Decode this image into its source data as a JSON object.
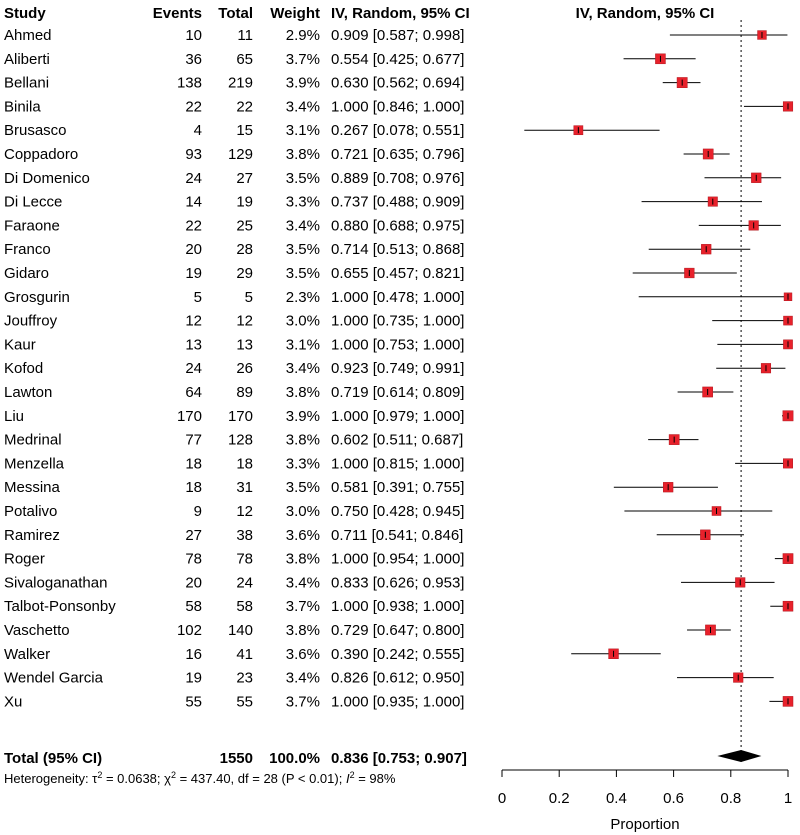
{
  "chart_data": {
    "type": "forest",
    "columns": [
      "Study",
      "Events",
      "Total",
      "Weight",
      "IV, Random, 95% CI"
    ],
    "plot_title": "IV, Random, 95% CI",
    "xlabel": "Proportion",
    "xlim": [
      0,
      1
    ],
    "xticks": [
      0,
      0.2,
      0.4,
      0.6,
      0.8,
      1
    ],
    "xtick_labels": [
      "0",
      "0.2",
      "0.4",
      "0.6",
      "0.8",
      "1"
    ],
    "reference_line": 0.836,
    "marker_color": "#e8212b",
    "studies": [
      {
        "name": "Ahmed",
        "events": "10",
        "total": "11",
        "weight": "2.9%",
        "ci_text": "0.909 [0.587; 0.998]",
        "est": 0.909,
        "lo": 0.587,
        "hi": 0.998,
        "w": 2.9
      },
      {
        "name": "Aliberti",
        "events": "36",
        "total": "65",
        "weight": "3.7%",
        "ci_text": "0.554 [0.425; 0.677]",
        "est": 0.554,
        "lo": 0.425,
        "hi": 0.677,
        "w": 3.7
      },
      {
        "name": "Bellani",
        "events": "138",
        "total": "219",
        "weight": "3.9%",
        "ci_text": "0.630 [0.562; 0.694]",
        "est": 0.63,
        "lo": 0.562,
        "hi": 0.694,
        "w": 3.9
      },
      {
        "name": "Binila",
        "events": "22",
        "total": "22",
        "weight": "3.4%",
        "ci_text": "1.000 [0.846; 1.000]",
        "est": 1.0,
        "lo": 0.846,
        "hi": 1.0,
        "w": 3.4
      },
      {
        "name": "Brusasco",
        "events": "4",
        "total": "15",
        "weight": "3.1%",
        "ci_text": "0.267 [0.078; 0.551]",
        "est": 0.267,
        "lo": 0.078,
        "hi": 0.551,
        "w": 3.1
      },
      {
        "name": "Coppadoro",
        "events": "93",
        "total": "129",
        "weight": "3.8%",
        "ci_text": "0.721 [0.635; 0.796]",
        "est": 0.721,
        "lo": 0.635,
        "hi": 0.796,
        "w": 3.8
      },
      {
        "name": "Di Domenico",
        "events": "24",
        "total": "27",
        "weight": "3.5%",
        "ci_text": "0.889 [0.708; 0.976]",
        "est": 0.889,
        "lo": 0.708,
        "hi": 0.976,
        "w": 3.5
      },
      {
        "name": "Di Lecce",
        "events": "14",
        "total": "19",
        "weight": "3.3%",
        "ci_text": "0.737 [0.488; 0.909]",
        "est": 0.737,
        "lo": 0.488,
        "hi": 0.909,
        "w": 3.3
      },
      {
        "name": "Faraone",
        "events": "22",
        "total": "25",
        "weight": "3.4%",
        "ci_text": "0.880 [0.688; 0.975]",
        "est": 0.88,
        "lo": 0.688,
        "hi": 0.975,
        "w": 3.4
      },
      {
        "name": "Franco",
        "events": "20",
        "total": "28",
        "weight": "3.5%",
        "ci_text": "0.714 [0.513; 0.868]",
        "est": 0.714,
        "lo": 0.513,
        "hi": 0.868,
        "w": 3.5
      },
      {
        "name": "Gidaro",
        "events": "19",
        "total": "29",
        "weight": "3.5%",
        "ci_text": "0.655 [0.457; 0.821]",
        "est": 0.655,
        "lo": 0.457,
        "hi": 0.821,
        "w": 3.5
      },
      {
        "name": "Grosgurin",
        "events": "5",
        "total": "5",
        "weight": "2.3%",
        "ci_text": "1.000 [0.478; 1.000]",
        "est": 1.0,
        "lo": 0.478,
        "hi": 1.0,
        "w": 2.3
      },
      {
        "name": "Jouffroy",
        "events": "12",
        "total": "12",
        "weight": "3.0%",
        "ci_text": "1.000 [0.735; 1.000]",
        "est": 1.0,
        "lo": 0.735,
        "hi": 1.0,
        "w": 3.0
      },
      {
        "name": "Kaur",
        "events": "13",
        "total": "13",
        "weight": "3.1%",
        "ci_text": "1.000 [0.753; 1.000]",
        "est": 1.0,
        "lo": 0.753,
        "hi": 1.0,
        "w": 3.1
      },
      {
        "name": "Kofod",
        "events": "24",
        "total": "26",
        "weight": "3.4%",
        "ci_text": "0.923 [0.749; 0.991]",
        "est": 0.923,
        "lo": 0.749,
        "hi": 0.991,
        "w": 3.4
      },
      {
        "name": "Lawton",
        "events": "64",
        "total": "89",
        "weight": "3.8%",
        "ci_text": "0.719 [0.614; 0.809]",
        "est": 0.719,
        "lo": 0.614,
        "hi": 0.809,
        "w": 3.8
      },
      {
        "name": "Liu",
        "events": "170",
        "total": "170",
        "weight": "3.9%",
        "ci_text": "1.000 [0.979; 1.000]",
        "est": 1.0,
        "lo": 0.979,
        "hi": 1.0,
        "w": 3.9
      },
      {
        "name": "Medrinal",
        "events": "77",
        "total": "128",
        "weight": "3.8%",
        "ci_text": "0.602 [0.511; 0.687]",
        "est": 0.602,
        "lo": 0.511,
        "hi": 0.687,
        "w": 3.8
      },
      {
        "name": "Menzella",
        "events": "18",
        "total": "18",
        "weight": "3.3%",
        "ci_text": "1.000 [0.815; 1.000]",
        "est": 1.0,
        "lo": 0.815,
        "hi": 1.0,
        "w": 3.3
      },
      {
        "name": "Messina",
        "events": "18",
        "total": "31",
        "weight": "3.5%",
        "ci_text": "0.581 [0.391; 0.755]",
        "est": 0.581,
        "lo": 0.391,
        "hi": 0.755,
        "w": 3.5
      },
      {
        "name": "Potalivo",
        "events": "9",
        "total": "12",
        "weight": "3.0%",
        "ci_text": "0.750 [0.428; 0.945]",
        "est": 0.75,
        "lo": 0.428,
        "hi": 0.945,
        "w": 3.0
      },
      {
        "name": "Ramirez",
        "events": "27",
        "total": "38",
        "weight": "3.6%",
        "ci_text": "0.711 [0.541; 0.846]",
        "est": 0.711,
        "lo": 0.541,
        "hi": 0.846,
        "w": 3.6
      },
      {
        "name": "Roger",
        "events": "78",
        "total": "78",
        "weight": "3.8%",
        "ci_text": "1.000 [0.954; 1.000]",
        "est": 1.0,
        "lo": 0.954,
        "hi": 1.0,
        "w": 3.8
      },
      {
        "name": "Sivaloganathan",
        "events": "20",
        "total": "24",
        "weight": "3.4%",
        "ci_text": "0.833 [0.626; 0.953]",
        "est": 0.833,
        "lo": 0.626,
        "hi": 0.953,
        "w": 3.4
      },
      {
        "name": "Talbot-Ponsonby",
        "events": "58",
        "total": "58",
        "weight": "3.7%",
        "ci_text": "1.000 [0.938; 1.000]",
        "est": 1.0,
        "lo": 0.938,
        "hi": 1.0,
        "w": 3.7
      },
      {
        "name": "Vaschetto",
        "events": "102",
        "total": "140",
        "weight": "3.8%",
        "ci_text": "0.729 [0.647; 0.800]",
        "est": 0.729,
        "lo": 0.647,
        "hi": 0.8,
        "w": 3.8
      },
      {
        "name": "Walker",
        "events": "16",
        "total": "41",
        "weight": "3.6%",
        "ci_text": "0.390 [0.242; 0.555]",
        "est": 0.39,
        "lo": 0.242,
        "hi": 0.555,
        "w": 3.6
      },
      {
        "name": "Wendel Garcia",
        "events": "19",
        "total": "23",
        "weight": "3.4%",
        "ci_text": "0.826 [0.612; 0.950]",
        "est": 0.826,
        "lo": 0.612,
        "hi": 0.95,
        "w": 3.4
      },
      {
        "name": "Xu",
        "events": "55",
        "total": "55",
        "weight": "3.7%",
        "ci_text": "1.000 [0.935; 1.000]",
        "est": 1.0,
        "lo": 0.935,
        "hi": 1.0,
        "w": 3.7
      }
    ],
    "total": {
      "label": "Total (95% CI)",
      "total": "1550",
      "weight": "100.0%",
      "ci_text": "0.836 [0.753; 0.907]",
      "est": 0.836,
      "lo": 0.753,
      "hi": 0.907
    },
    "heterogeneity": {
      "prefix": "Heterogeneity: ",
      "tau_symbol": "τ",
      "tau_sq_value": " = 0.0638; ",
      "chi_symbol": "χ",
      "chi_sq_value": " = 437.40, df = 28 (P < 0.01); ",
      "i_symbol": "I",
      "i_sq_value": " = 98%",
      "exponent": "2"
    }
  }
}
